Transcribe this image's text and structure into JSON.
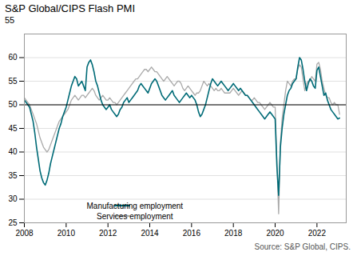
{
  "chart_data": {
    "type": "line",
    "title": "S&P Global/CIPS Flash PMI",
    "subtitle": "55",
    "caption": "Source: S&P Global, CIPS.",
    "x": [
      2008.0,
      2008.083,
      2008.167,
      2008.25,
      2008.333,
      2008.417,
      2008.5,
      2008.583,
      2008.667,
      2008.75,
      2008.833,
      2008.917,
      2009.0,
      2009.083,
      2009.167,
      2009.25,
      2009.333,
      2009.417,
      2009.5,
      2009.583,
      2009.667,
      2009.75,
      2009.833,
      2009.917,
      2010.0,
      2010.083,
      2010.167,
      2010.25,
      2010.333,
      2010.417,
      2010.5,
      2010.583,
      2010.667,
      2010.75,
      2010.833,
      2010.917,
      2011.0,
      2011.083,
      2011.167,
      2011.25,
      2011.333,
      2011.417,
      2011.5,
      2011.583,
      2011.667,
      2011.75,
      2011.833,
      2011.917,
      2012.0,
      2012.083,
      2012.167,
      2012.25,
      2012.333,
      2012.417,
      2012.5,
      2012.583,
      2012.667,
      2012.75,
      2012.833,
      2012.917,
      2013.0,
      2013.083,
      2013.167,
      2013.25,
      2013.333,
      2013.417,
      2013.5,
      2013.583,
      2013.667,
      2013.75,
      2013.833,
      2013.917,
      2014.0,
      2014.083,
      2014.167,
      2014.25,
      2014.333,
      2014.417,
      2014.5,
      2014.583,
      2014.667,
      2014.75,
      2014.833,
      2014.917,
      2015.0,
      2015.083,
      2015.167,
      2015.25,
      2015.333,
      2015.417,
      2015.5,
      2015.583,
      2015.667,
      2015.75,
      2015.833,
      2015.917,
      2016.0,
      2016.083,
      2016.167,
      2016.25,
      2016.333,
      2016.417,
      2016.5,
      2016.583,
      2016.667,
      2016.75,
      2016.833,
      2016.917,
      2017.0,
      2017.083,
      2017.167,
      2017.25,
      2017.333,
      2017.417,
      2017.5,
      2017.583,
      2017.667,
      2017.75,
      2017.833,
      2017.917,
      2018.0,
      2018.083,
      2018.167,
      2018.25,
      2018.333,
      2018.417,
      2018.5,
      2018.583,
      2018.667,
      2018.75,
      2018.833,
      2018.917,
      2019.0,
      2019.083,
      2019.167,
      2019.25,
      2019.333,
      2019.417,
      2019.5,
      2019.583,
      2019.667,
      2019.75,
      2019.833,
      2019.917,
      2020.0,
      2020.083,
      2020.167,
      2020.25,
      2020.333,
      2020.417,
      2020.5,
      2020.583,
      2020.667,
      2020.75,
      2020.833,
      2020.917,
      2021.0,
      2021.083,
      2021.167,
      2021.25,
      2021.333,
      2021.417,
      2021.5,
      2021.583,
      2021.667,
      2021.75,
      2021.833,
      2021.917,
      2022.0,
      2022.083,
      2022.167,
      2022.25,
      2022.333,
      2022.417,
      2022.5,
      2022.583,
      2022.667,
      2022.75,
      2022.833,
      2022.917,
      2023.0,
      2023.083
    ],
    "series": [
      {
        "name": "Manufacturing employment",
        "color": "#006b77",
        "values": [
          51.0,
          50.5,
          50.0,
          49.5,
          48.0,
          46.5,
          44.0,
          41.0,
          38.5,
          36.0,
          34.5,
          33.5,
          33.0,
          34.0,
          35.5,
          37.5,
          39.0,
          40.5,
          42.0,
          43.5,
          45.0,
          46.0,
          47.5,
          48.5,
          49.5,
          51.0,
          52.5,
          54.0,
          55.0,
          56.0,
          55.5,
          54.0,
          54.5,
          55.0,
          54.0,
          53.0,
          58.0,
          59.0,
          59.5,
          58.5,
          57.0,
          55.0,
          54.0,
          52.5,
          51.0,
          50.0,
          49.5,
          49.0,
          49.5,
          50.0,
          49.0,
          48.5,
          48.0,
          47.5,
          48.0,
          49.0,
          49.5,
          50.5,
          51.0,
          51.5,
          50.5,
          51.0,
          51.5,
          52.0,
          52.5,
          53.0,
          54.0,
          54.5,
          54.0,
          53.5,
          53.0,
          52.5,
          53.5,
          54.5,
          55.0,
          55.5,
          55.0,
          54.0,
          53.0,
          52.0,
          51.5,
          51.0,
          51.5,
          52.0,
          52.5,
          53.0,
          52.0,
          51.5,
          51.0,
          50.5,
          51.0,
          51.5,
          52.0,
          52.5,
          52.0,
          51.5,
          52.0,
          51.5,
          51.0,
          50.0,
          48.5,
          47.5,
          48.0,
          49.0,
          50.0,
          51.5,
          53.0,
          54.5,
          55.5,
          55.0,
          54.5,
          54.0,
          54.5,
          55.0,
          54.5,
          54.0,
          53.5,
          53.0,
          53.5,
          54.0,
          54.5,
          54.0,
          53.5,
          53.0,
          53.5,
          53.0,
          52.5,
          52.0,
          52.0,
          51.5,
          51.0,
          50.5,
          50.0,
          49.5,
          49.0,
          48.5,
          48.0,
          47.5,
          47.0,
          47.5,
          48.0,
          48.5,
          48.0,
          47.5,
          47.0,
          37.0,
          30.8,
          41.0,
          45.0,
          48.0,
          50.0,
          52.0,
          53.0,
          53.5,
          54.5,
          55.0,
          55.5,
          58.0,
          60.0,
          59.5,
          57.5,
          55.0,
          53.0,
          54.5,
          55.5,
          55.0,
          54.0,
          53.5,
          57.3,
          58.0,
          56.0,
          54.0,
          52.0,
          52.5,
          51.0,
          50.0,
          49.0,
          48.5,
          48.0,
          47.5,
          47.0,
          47.2
        ]
      },
      {
        "name": "Services employment",
        "color": "#aaaaaa",
        "values": [
          51.5,
          51.0,
          50.5,
          50.0,
          49.0,
          48.0,
          47.0,
          46.0,
          44.5,
          43.0,
          42.0,
          41.0,
          40.5,
          40.0,
          40.5,
          41.5,
          42.5,
          43.5,
          44.5,
          45.5,
          46.5,
          47.0,
          47.5,
          48.0,
          48.5,
          49.0,
          50.0,
          51.0,
          51.5,
          52.0,
          51.5,
          51.0,
          51.5,
          52.0,
          52.0,
          51.5,
          52.0,
          52.5,
          53.0,
          53.5,
          53.0,
          52.0,
          51.5,
          51.0,
          51.5,
          52.0,
          51.5,
          51.0,
          51.0,
          51.5,
          51.0,
          50.5,
          50.5,
          50.0,
          50.5,
          51.0,
          51.5,
          52.0,
          52.5,
          53.0,
          53.5,
          54.0,
          54.5,
          55.0,
          55.5,
          55.5,
          56.0,
          56.5,
          57.0,
          57.5,
          57.5,
          57.0,
          57.5,
          58.0,
          57.5,
          57.0,
          57.0,
          56.5,
          56.0,
          55.5,
          55.0,
          55.5,
          56.0,
          55.5,
          55.0,
          54.5,
          54.0,
          54.5,
          55.0,
          55.0,
          54.5,
          53.5,
          53.0,
          53.5,
          54.0,
          53.5,
          53.0,
          52.5,
          52.0,
          52.5,
          52.5,
          53.0,
          54.0,
          55.0,
          54.5,
          54.0,
          54.5,
          54.0,
          53.5,
          53.0,
          53.5,
          53.0,
          53.0,
          53.5,
          53.0,
          52.5,
          52.5,
          52.5,
          52.5,
          53.0,
          53.5,
          53.0,
          52.5,
          52.0,
          52.5,
          53.0,
          52.5,
          52.0,
          52.0,
          51.5,
          51.0,
          51.0,
          51.5,
          51.0,
          50.5,
          50.5,
          50.0,
          49.5,
          49.0,
          49.5,
          50.0,
          50.5,
          50.0,
          49.5,
          49.5,
          38.0,
          26.9,
          42.0,
          47.0,
          50.0,
          53.0,
          55.0,
          54.5,
          54.0,
          55.0,
          55.5,
          55.5,
          57.5,
          58.5,
          58.0,
          55.5,
          53.0,
          54.5,
          55.0,
          55.0,
          56.0,
          55.5,
          55.0,
          58.6,
          59.0,
          57.5,
          55.0,
          53.5,
          52.0,
          51.5,
          51.5,
          50.5,
          50.0,
          50.5,
          50.0,
          50.0,
          48.0
        ]
      }
    ],
    "reference_line": 50,
    "xlim": [
      2008.0,
      2023.4
    ],
    "xticks": [
      2008,
      2010,
      2012,
      2014,
      2016,
      2018,
      2020,
      2022
    ],
    "ylim": [
      25,
      65
    ],
    "yticks": [
      25,
      30,
      35,
      40,
      45,
      50,
      55,
      60
    ],
    "grid": true,
    "legend": "lower left"
  }
}
